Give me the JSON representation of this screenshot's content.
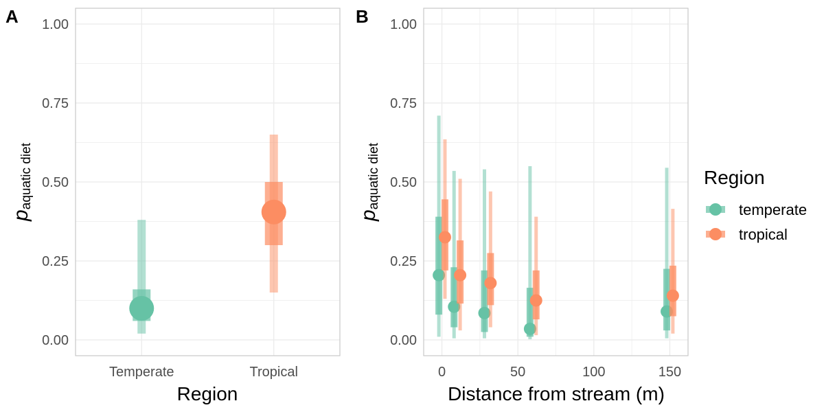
{
  "colors": {
    "temperate": "#66c2a5",
    "tropical": "#fc8d62",
    "grid": "#ebebeb",
    "border": "#c8c8c8"
  },
  "legend": {
    "title": "Region",
    "items": [
      {
        "key": "temperate",
        "label": "temperate"
      },
      {
        "key": "tropical",
        "label": "tropical"
      }
    ]
  },
  "chart_data": [
    {
      "panel": "A",
      "type": "scatter",
      "xlabel": "Region",
      "ylabel_main": "p",
      "ylabel_sub": "aquatic diet",
      "categories": [
        "Temperate",
        "Tropical"
      ],
      "ylim": [
        -0.05,
        1.05
      ],
      "yticks": [
        "0.00",
        "0.25",
        "0.50",
        "0.75",
        "1.00"
      ],
      "grid": true,
      "points": [
        {
          "region": "temperate",
          "x": "Temperate",
          "y": 0.1,
          "inner": [
            0.06,
            0.16
          ],
          "outer": [
            0.02,
            0.38
          ]
        },
        {
          "region": "tropical",
          "x": "Tropical",
          "y": 0.405,
          "inner": [
            0.3,
            0.5
          ],
          "outer": [
            0.15,
            0.65
          ]
        }
      ]
    },
    {
      "panel": "B",
      "type": "scatter",
      "xlabel": "Distance from stream (m)",
      "ylabel_main": "p",
      "ylabel_sub": "aquatic diet",
      "xlim": [
        -12,
        162
      ],
      "ylim": [
        -0.05,
        1.05
      ],
      "xticks": [
        "0",
        "50",
        "100",
        "150"
      ],
      "yticks": [
        "0.00",
        "0.25",
        "0.50",
        "0.75",
        "1.00"
      ],
      "grid": true,
      "series": [
        {
          "name": "temperate",
          "points": [
            {
              "x": 0,
              "y": 0.205,
              "inner": [
                0.08,
                0.39
              ],
              "outer": [
                0.01,
                0.71
              ]
            },
            {
              "x": 10,
              "y": 0.105,
              "inner": [
                0.04,
                0.23
              ],
              "outer": [
                0.005,
                0.535
              ]
            },
            {
              "x": 30,
              "y": 0.085,
              "inner": [
                0.025,
                0.22
              ],
              "outer": [
                0.005,
                0.54
              ]
            },
            {
              "x": 60,
              "y": 0.035,
              "inner": [
                0.01,
                0.165
              ],
              "outer": [
                0.002,
                0.55
              ]
            },
            {
              "x": 150,
              "y": 0.09,
              "inner": [
                0.03,
                0.225
              ],
              "outer": [
                0.005,
                0.545
              ]
            }
          ]
        },
        {
          "name": "tropical",
          "points": [
            {
              "x": 0,
              "y": 0.325,
              "inner": [
                0.22,
                0.445
              ],
              "outer": [
                0.13,
                0.635
              ]
            },
            {
              "x": 10,
              "y": 0.205,
              "inner": [
                0.115,
                0.315
              ],
              "outer": [
                0.03,
                0.51
              ]
            },
            {
              "x": 30,
              "y": 0.18,
              "inner": [
                0.11,
                0.275
              ],
              "outer": [
                0.04,
                0.47
              ]
            },
            {
              "x": 60,
              "y": 0.125,
              "inner": [
                0.065,
                0.22
              ],
              "outer": [
                0.015,
                0.39
              ]
            },
            {
              "x": 150,
              "y": 0.14,
              "inner": [
                0.075,
                0.235
              ],
              "outer": [
                0.02,
                0.415
              ]
            }
          ]
        }
      ]
    }
  ]
}
